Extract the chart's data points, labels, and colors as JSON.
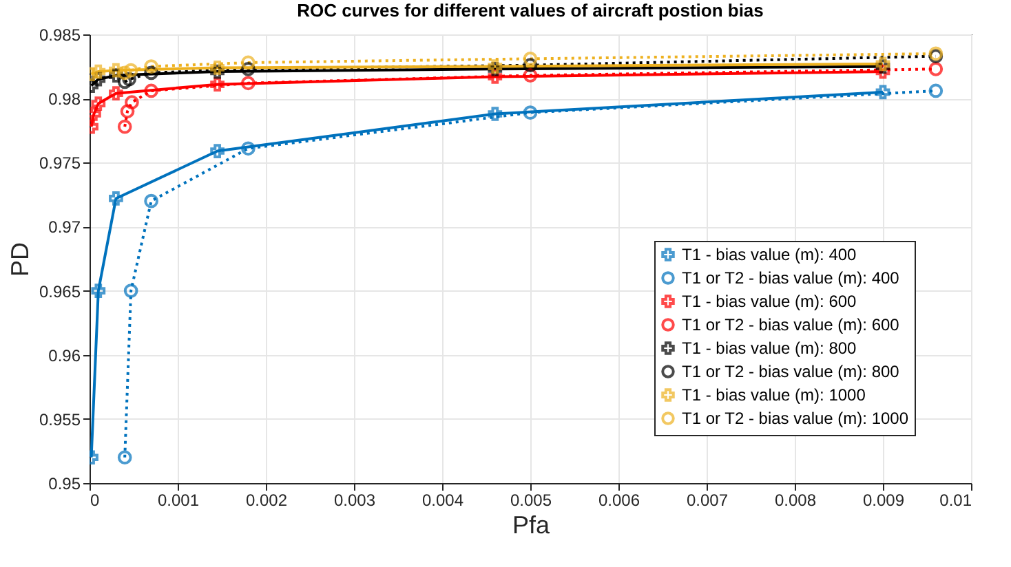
{
  "chart_data": {
    "type": "line",
    "title": "ROC curves for different values of aircraft postion bias",
    "xlabel": "Pfa",
    "ylabel": "PD",
    "xlim": [
      0,
      0.01
    ],
    "xticks": [
      0,
      0.001,
      0.002,
      0.003,
      0.004,
      0.005,
      0.006,
      0.007,
      0.008,
      0.009,
      0.01
    ],
    "ylim": [
      0.95,
      0.985
    ],
    "yticks": [
      0.95,
      0.955,
      0.96,
      0.965,
      0.97,
      0.975,
      0.98,
      0.985
    ],
    "grid": true,
    "legend": "right",
    "series": [
      {
        "name": "T1 - bias value (m): 400",
        "color": "#0072bd",
        "marker": "cross",
        "line_style": "solid",
        "x": [
          2e-05,
          0.0001,
          0.0003,
          0.00145,
          0.0046,
          0.009
        ],
        "values": [
          0.952,
          0.965,
          0.9722,
          0.9759,
          0.9788,
          0.9805
        ]
      },
      {
        "name": "T1 or T2 - bias value (m): 400",
        "color": "#0072bd",
        "marker": "circle",
        "line_style": "dotted",
        "x": [
          0.0004,
          0.00047,
          0.0007,
          0.0018,
          0.005,
          0.0096
        ],
        "values": [
          0.952,
          0.965,
          0.972,
          0.9761,
          0.9789,
          0.9806
        ]
      },
      {
        "name": "T1 - bias value (m): 600",
        "color": "#ff0000",
        "marker": "cross",
        "line_style": "solid",
        "x": [
          2e-05,
          5e-05,
          0.0001,
          0.0003,
          0.00145,
          0.0046,
          0.009
        ],
        "values": [
          0.9778,
          0.9788,
          0.9796,
          0.9804,
          0.9811,
          0.9817,
          0.9821
        ]
      },
      {
        "name": "T1 or T2 - bias value (m): 600",
        "color": "#ff0000",
        "marker": "circle",
        "line_style": "dotted",
        "x": [
          0.0004,
          0.00043,
          0.00048,
          0.0007,
          0.0018,
          0.005,
          0.0096
        ],
        "values": [
          0.9778,
          0.979,
          0.9797,
          0.9806,
          0.9812,
          0.9818,
          0.9823
        ]
      },
      {
        "name": "T1 - bias value (m): 800",
        "color": "#000000",
        "marker": "cross",
        "line_style": "solid",
        "x": [
          2e-05,
          0.0001,
          0.0003,
          0.00145,
          0.0046,
          0.009
        ],
        "values": [
          0.981,
          0.9815,
          0.9818,
          0.9821,
          0.9823,
          0.9825
        ]
      },
      {
        "name": "T1 or T2 - bias value (m): 800",
        "color": "#000000",
        "marker": "circle",
        "line_style": "dotted",
        "x": [
          0.0004,
          0.00045,
          0.0007,
          0.0018,
          0.005,
          0.0096
        ],
        "values": [
          0.9813,
          0.9815,
          0.982,
          0.9823,
          0.9826,
          0.9833
        ]
      },
      {
        "name": "T1 - bias value (m): 1000",
        "color": "#edb120",
        "marker": "cross",
        "line_style": "solid",
        "x": [
          2e-05,
          0.0001,
          0.0003,
          0.00145,
          0.0046,
          0.009
        ],
        "values": [
          0.9819,
          0.9821,
          0.9822,
          0.9824,
          0.9825,
          0.9827
        ]
      },
      {
        "name": "T1 or T2 - bias value (m): 1000",
        "color": "#edb120",
        "marker": "circle",
        "line_style": "dotted",
        "x": [
          0.0004,
          0.00047,
          0.0007,
          0.0018,
          0.005,
          0.0096
        ],
        "values": [
          0.982,
          0.9822,
          0.9825,
          0.9828,
          0.9831,
          0.9835
        ]
      }
    ]
  }
}
